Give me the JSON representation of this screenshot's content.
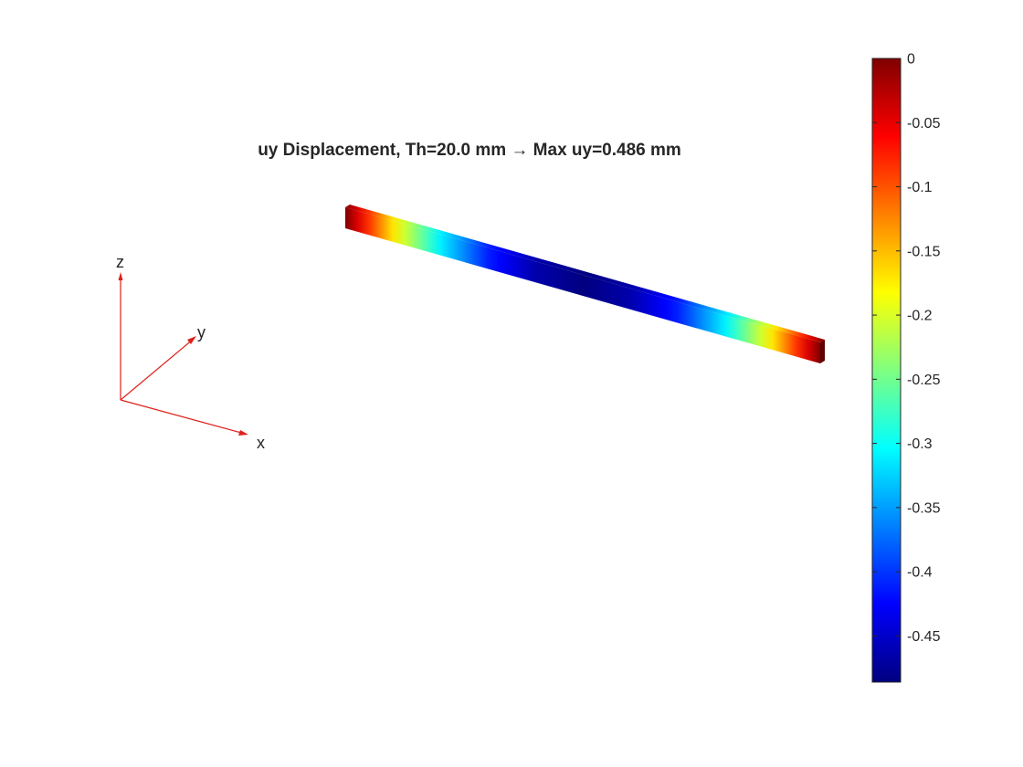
{
  "chart_data": {
    "type": "heatmap",
    "title": "uy Displacement, Th=20.0 mm → Max uy=0.486 mm",
    "field": "uy",
    "colormap": "jet",
    "clim": [
      -0.486,
      0
    ],
    "colorbar": {
      "position": "right",
      "ticks": [
        0,
        -0.05,
        -0.1,
        -0.15,
        -0.2,
        -0.25,
        -0.3,
        -0.35,
        -0.4,
        -0.45
      ],
      "tick_labels": [
        "0",
        "-0.05",
        "-0.1",
        "-0.15",
        "-0.2",
        "-0.25",
        "-0.3",
        "-0.35",
        "-0.4",
        "-0.45"
      ]
    },
    "triad": {
      "x_label": "x",
      "y_label": "y",
      "z_label": "z",
      "color": "#e0201a"
    },
    "profile": {
      "s": [
        0,
        0.1,
        0.2,
        0.3,
        0.4,
        0.5,
        0.6,
        0.7,
        0.8,
        0.9,
        1
      ],
      "uy": [
        0,
        -0.17,
        -0.31,
        -0.41,
        -0.465,
        -0.486,
        -0.465,
        -0.41,
        -0.31,
        -0.17,
        0
      ]
    }
  }
}
